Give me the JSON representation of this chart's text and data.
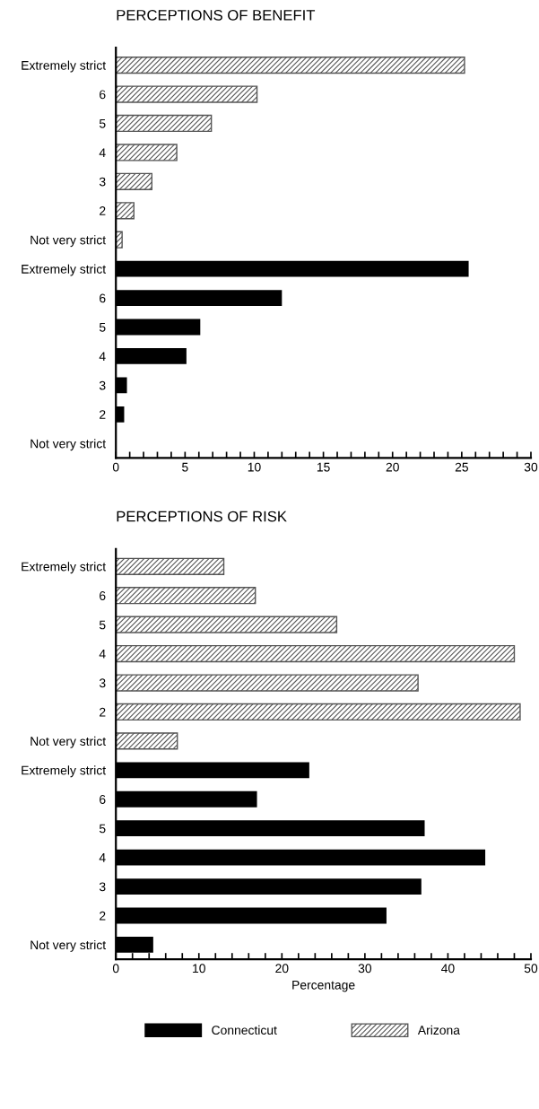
{
  "chart_data": [
    {
      "type": "bar",
      "orientation": "horizontal",
      "title": "PERCEPTIONS OF BENEFIT",
      "categories": [
        "Extremely strict",
        "6",
        "5",
        "4",
        "3",
        "2",
        "Not very strict",
        "Extremely strict",
        "6",
        "5",
        "4",
        "3",
        "2",
        "Not very strict"
      ],
      "series": [
        {
          "color": "#555555",
          "values": [
            25.2,
            10.2,
            6.9,
            4.4,
            2.6,
            1.3,
            0.45,
            null,
            null,
            null,
            null,
            null,
            null,
            null
          ]
        },
        {
          "color": "#000000",
          "values": [
            null,
            null,
            null,
            null,
            null,
            null,
            null,
            25.5,
            12.0,
            6.1,
            5.1,
            0.8,
            0.6,
            0
          ]
        }
      ],
      "xlim": [
        0,
        30
      ],
      "xticks": [
        0,
        {
          "value": 1,
          "label": null
        },
        {
          "value": 2,
          "label": null
        },
        {
          "value": 3,
          "label": null
        },
        {
          "value": 4,
          "label": null
        },
        5,
        {
          "value": 6,
          "label": null
        },
        {
          "value": 7,
          "label": null
        },
        {
          "value": 8,
          "label": null
        },
        {
          "value": 9,
          "label": null
        },
        10,
        {
          "value": 11,
          "label": null
        },
        {
          "value": 12,
          "label": null
        },
        {
          "value": 13,
          "label": null
        },
        {
          "value": 14,
          "label": null
        },
        15,
        {
          "value": 16,
          "label": null
        },
        {
          "value": 17,
          "label": null
        },
        {
          "value": 18,
          "label": null
        },
        {
          "value": 19,
          "label": null
        },
        20,
        {
          "value": 21,
          "label": null
        },
        {
          "value": 22,
          "label": null
        },
        {
          "value": 23,
          "label": null
        },
        {
          "value": 24,
          "label": null
        },
        25,
        {
          "value": 26,
          "label": null
        },
        {
          "value": 27,
          "label": null
        },
        {
          "value": 28,
          "label": null
        },
        {
          "value": 29,
          "label": null
        },
        30
      ],
      "grid": false
    },
    {
      "type": "bar",
      "orientation": "horizontal",
      "title": "PERCEPTIONS OF RISK",
      "xlabel": "Percentage",
      "categories": [
        "Extremely strict",
        "6",
        "5",
        "4",
        "3",
        "2",
        "Not very strict",
        "Extremely strict",
        "6",
        "5",
        "4",
        "3",
        "2",
        "Not very strict"
      ],
      "series": [
        {
          "name": "Arizona",
          "color": "#555555",
          "values": [
            13.0,
            16.8,
            26.6,
            48.0,
            36.4,
            48.7,
            7.4,
            null,
            null,
            null,
            null,
            null,
            null,
            null
          ]
        },
        {
          "name": "Connecticut",
          "color": "#000000",
          "values": [
            null,
            null,
            null,
            null,
            null,
            null,
            null,
            23.3,
            17.0,
            37.2,
            44.5,
            36.8,
            32.6,
            4.5
          ]
        }
      ],
      "xlim": [
        0,
        50
      ],
      "xticks": [
        0,
        {
          "value": 2,
          "label": null
        },
        {
          "value": 4,
          "label": null
        },
        {
          "value": 6,
          "label": null
        },
        {
          "value": 8,
          "label": null
        },
        10,
        {
          "value": 12,
          "label": null
        },
        {
          "value": 14,
          "label": null
        },
        {
          "value": 16,
          "label": null
        },
        {
          "value": 18,
          "label": null
        },
        20,
        {
          "value": 22,
          "label": null
        },
        {
          "value": 24,
          "label": null
        },
        {
          "value": 26,
          "label": null
        },
        {
          "value": 28,
          "label": null
        },
        30,
        {
          "value": 32,
          "label": null
        },
        {
          "value": 34,
          "label": null
        },
        {
          "value": 36,
          "label": null
        },
        {
          "value": 38,
          "label": null
        },
        40,
        {
          "value": 42,
          "label": null
        },
        {
          "value": 44,
          "label": null
        },
        {
          "value": 46,
          "label": null
        },
        {
          "value": 48,
          "label": null
        },
        50
      ],
      "grid": false,
      "legend": "bottom"
    }
  ]
}
